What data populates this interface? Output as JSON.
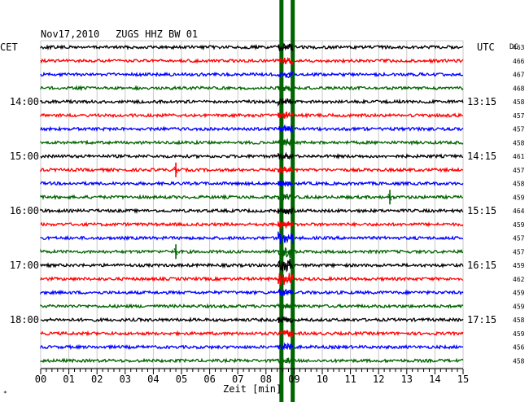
{
  "header": {
    "date": "Nov17,2010",
    "station": "ZUGS HHZ BW 01",
    "left_tz": "CET",
    "right_tz": "UTC",
    "dc_label": "DC"
  },
  "chart_data": {
    "type": "line",
    "title": "Nov17,2010  ZUGS HHZ BW 01",
    "xlabel": "Zeit [min]",
    "xlim": [
      0,
      15
    ],
    "x_ticks": [
      "00",
      "01",
      "02",
      "03",
      "04",
      "05",
      "06",
      "07",
      "08",
      "09",
      "10",
      "11",
      "12",
      "13",
      "14",
      "15"
    ],
    "trace_count": 24,
    "trace_interval_min": 15,
    "left_time_labels": [
      {
        "trace": 4,
        "label": "14:00"
      },
      {
        "trace": 8,
        "label": "15:00"
      },
      {
        "trace": 12,
        "label": "16:00"
      },
      {
        "trace": 16,
        "label": "17:00"
      },
      {
        "trace": 20,
        "label": "18:00"
      }
    ],
    "right_time_labels": [
      {
        "trace": 4,
        "label": "13:15"
      },
      {
        "trace": 8,
        "label": "14:15"
      },
      {
        "trace": 12,
        "label": "15:15"
      },
      {
        "trace": 16,
        "label": "16:15"
      },
      {
        "trace": 20,
        "label": "17:15"
      }
    ],
    "dc_values": [
      "463",
      "466",
      "467",
      "468",
      "458",
      "457",
      "457",
      "458",
      "461",
      "457",
      "458",
      "459",
      "464",
      "459",
      "457",
      "457",
      "459",
      "462",
      "459",
      "459",
      "458",
      "459",
      "456",
      "458"
    ],
    "trace_colors": [
      "#000000",
      "#ff0000",
      "#0000ff",
      "#006400"
    ],
    "event": {
      "x_min": [
        8.55,
        8.95
      ],
      "color": "#006400"
    },
    "events_minor": [
      {
        "trace": 9,
        "x_min": 4.8,
        "color": "#ff0000"
      },
      {
        "trace": 11,
        "x_min": 12.4,
        "color": "#006400"
      },
      {
        "trace": 15,
        "x_min": 4.8,
        "color": "#006400"
      }
    ],
    "grid": true
  }
}
